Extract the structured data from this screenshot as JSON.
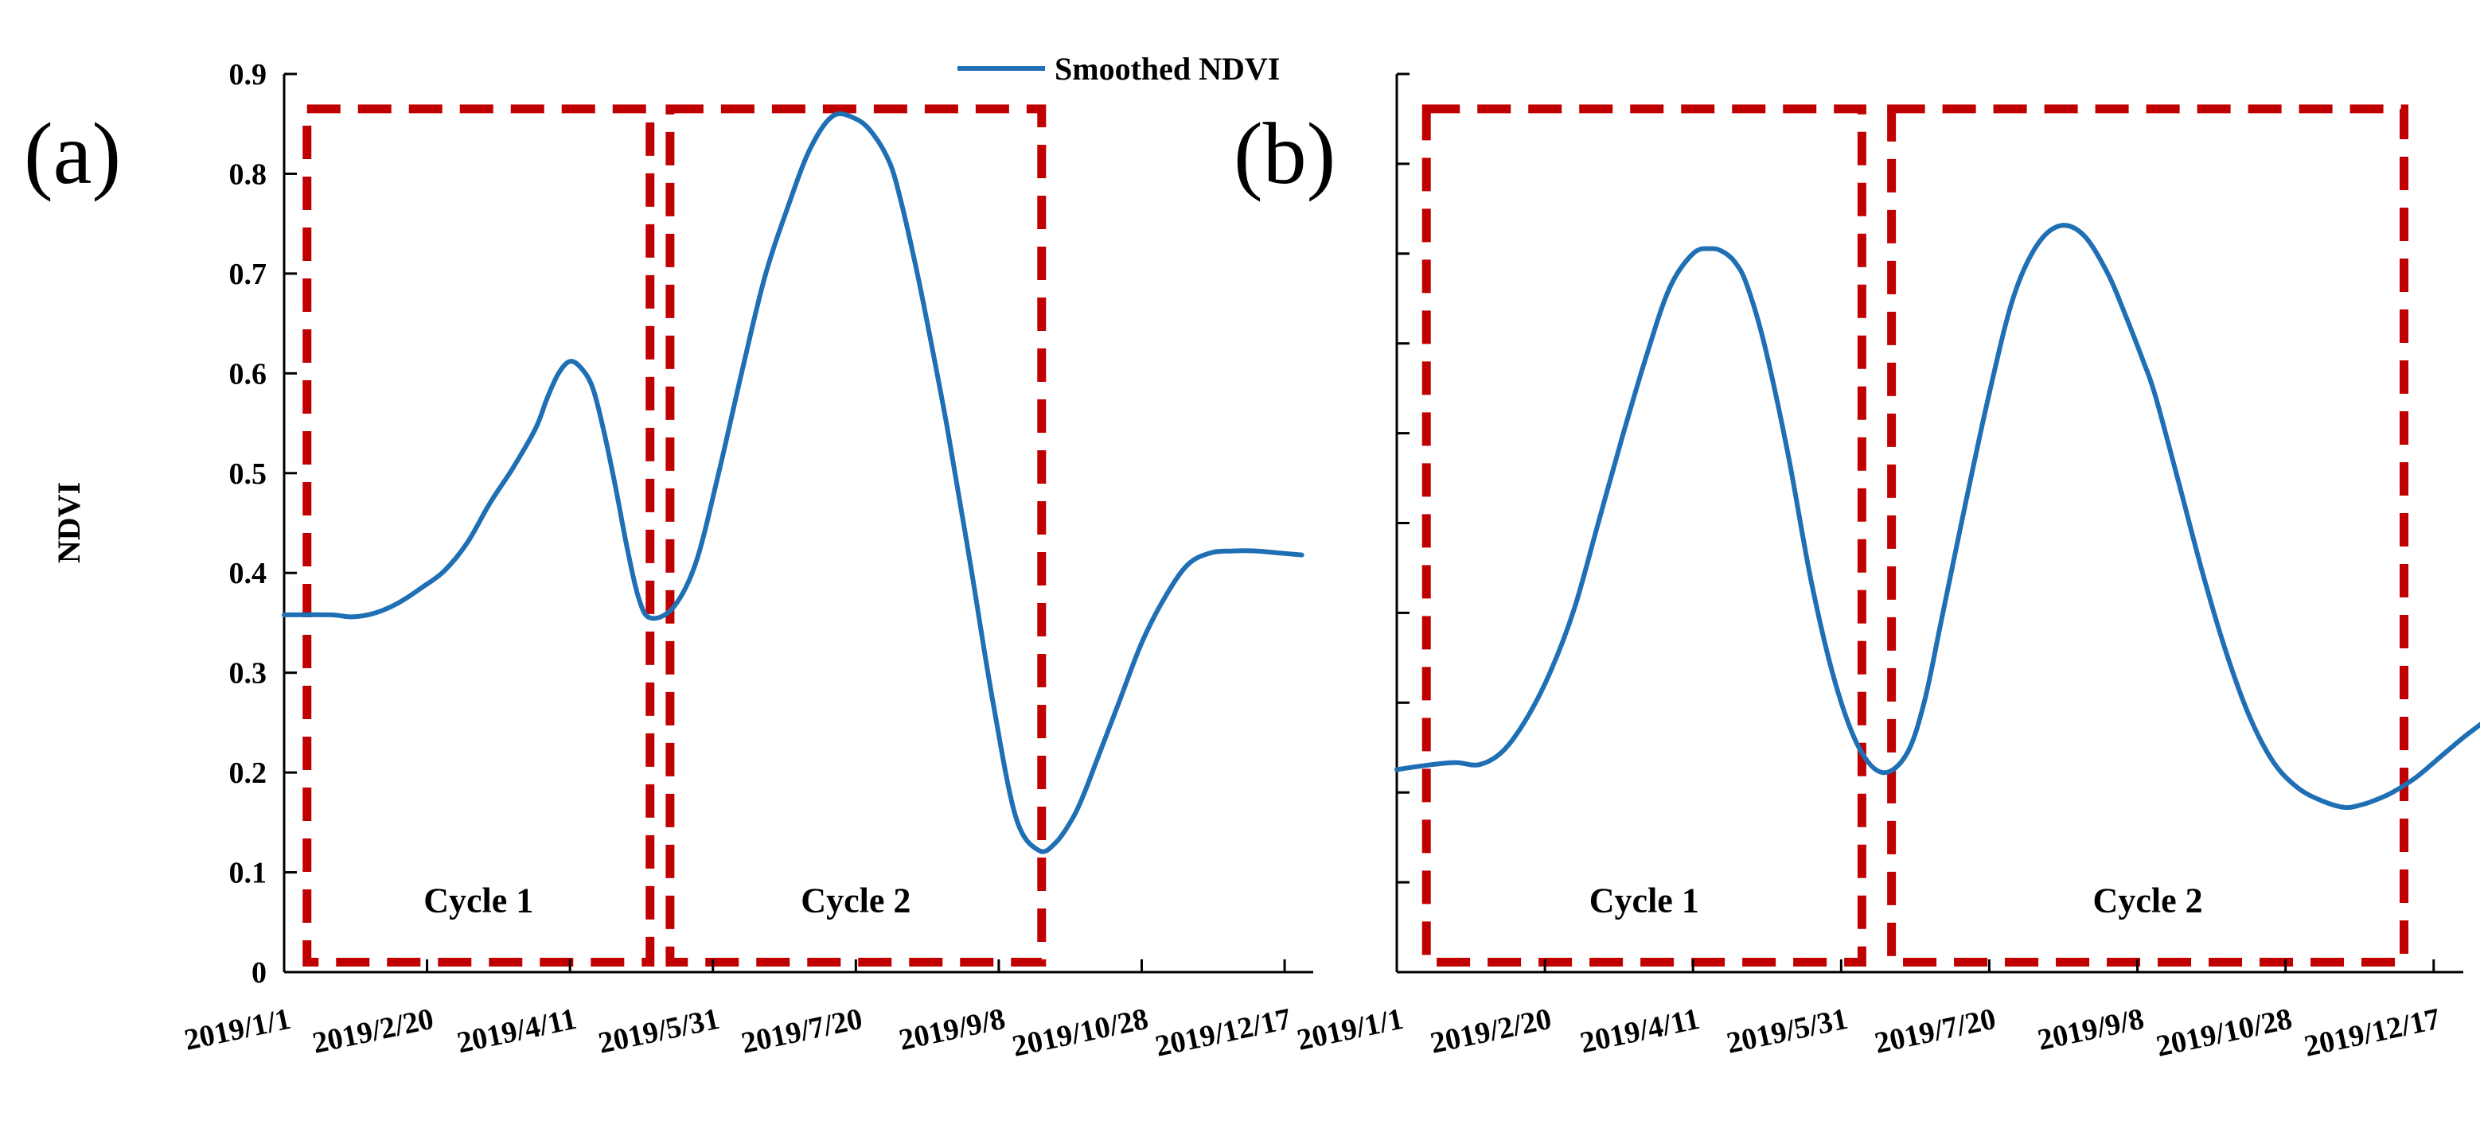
{
  "legend": {
    "label": "Smoothed NDVI"
  },
  "colors": {
    "line": "#1f6fb4",
    "box": "#c00000",
    "axis": "#000000"
  },
  "chart_data": [
    {
      "type": "line",
      "panel_label": "(a)",
      "ylabel": "NDVI",
      "ylim": [
        0,
        0.9
      ],
      "yticks": [
        "0",
        "0.1",
        "0.2",
        "0.3",
        "0.4",
        "0.5",
        "0.6",
        "0.7",
        "0.8",
        "0.9"
      ],
      "xlim": [
        0,
        360
      ],
      "xticks": [
        {
          "label": "2019/1/1",
          "day": 0
        },
        {
          "label": "2019/2/20",
          "day": 50
        },
        {
          "label": "2019/4/11",
          "day": 100
        },
        {
          "label": "2019/5/31",
          "day": 150
        },
        {
          "label": "2019/7/20",
          "day": 200
        },
        {
          "label": "2019/9/8",
          "day": 250
        },
        {
          "label": "2019/10/28",
          "day": 300
        },
        {
          "label": "2019/12/17",
          "day": 350
        }
      ],
      "series": [
        {
          "name": "Smoothed NDVI",
          "x": [
            0,
            16,
            24,
            32,
            40,
            48,
            56,
            64,
            72,
            80,
            88,
            92,
            96,
            100,
            104,
            108,
            112,
            116,
            120,
            124,
            128,
            136,
            144,
            152,
            160,
            168,
            176,
            184,
            192,
            200,
            206,
            212,
            216,
            220,
            224,
            232,
            240,
            248,
            256,
            264,
            270,
            276,
            280,
            284,
            292,
            300,
            308,
            316,
            324,
            332,
            340,
            348,
            356
          ],
          "values": [
            0.358,
            0.358,
            0.356,
            0.36,
            0.37,
            0.385,
            0.402,
            0.43,
            0.47,
            0.505,
            0.545,
            0.575,
            0.6,
            0.612,
            0.605,
            0.585,
            0.54,
            0.485,
            0.425,
            0.375,
            0.355,
            0.365,
            0.41,
            0.5,
            0.6,
            0.695,
            0.765,
            0.825,
            0.858,
            0.855,
            0.84,
            0.81,
            0.77,
            0.72,
            0.665,
            0.545,
            0.41,
            0.27,
            0.155,
            0.122,
            0.13,
            0.155,
            0.18,
            0.21,
            0.27,
            0.33,
            0.375,
            0.408,
            0.42,
            0.422,
            0.422,
            0.42,
            0.418
          ]
        }
      ],
      "annotations": [
        {
          "label": "Cycle 1",
          "x_range": [
            8,
            128
          ],
          "y_range": [
            0.01,
            0.865
          ]
        },
        {
          "label": "Cycle 2",
          "x_range": [
            135,
            265
          ],
          "y_range": [
            0.01,
            0.865
          ]
        }
      ]
    },
    {
      "type": "line",
      "panel_label": "(b)",
      "ylabel": "",
      "ylim": [
        0,
        0.9
      ],
      "yticks": [],
      "xlim": [
        0,
        360
      ],
      "xticks": [
        {
          "label": "2019/1/1",
          "day": 0
        },
        {
          "label": "2019/2/20",
          "day": 50
        },
        {
          "label": "2019/4/11",
          "day": 100
        },
        {
          "label": "2019/5/31",
          "day": 150
        },
        {
          "label": "2019/7/20",
          "day": 200
        },
        {
          "label": "2019/9/8",
          "day": 250
        },
        {
          "label": "2019/10/28",
          "day": 300
        },
        {
          "label": "2019/12/17",
          "day": 350
        }
      ],
      "series": [
        {
          "name": "Smoothed NDVI",
          "x": [
            0,
            12,
            20,
            28,
            36,
            44,
            52,
            60,
            68,
            76,
            84,
            92,
            100,
            106,
            110,
            114,
            118,
            124,
            132,
            140,
            148,
            156,
            164,
            172,
            178,
            184,
            192,
            200,
            208,
            216,
            224,
            232,
            240,
            246,
            252,
            256,
            264,
            272,
            280,
            288,
            296,
            304,
            312,
            320,
            326,
            330,
            336,
            344,
            352,
            360,
            368
          ],
          "values": [
            0.203,
            0.208,
            0.21,
            0.208,
            0.222,
            0.255,
            0.302,
            0.365,
            0.45,
            0.535,
            0.615,
            0.685,
            0.72,
            0.725,
            0.722,
            0.712,
            0.69,
            0.63,
            0.52,
            0.39,
            0.29,
            0.225,
            0.2,
            0.218,
            0.27,
            0.355,
            0.47,
            0.58,
            0.675,
            0.728,
            0.748,
            0.738,
            0.7,
            0.658,
            0.612,
            0.578,
            0.49,
            0.4,
            0.32,
            0.255,
            0.21,
            0.185,
            0.172,
            0.165,
            0.168,
            0.172,
            0.18,
            0.195,
            0.215,
            0.235,
            0.253
          ]
        }
      ],
      "annotations": [
        {
          "label": "Cycle 1",
          "x_range": [
            10,
            157
          ],
          "y_range": [
            0.01,
            0.865
          ]
        },
        {
          "label": "Cycle 2",
          "x_range": [
            167,
            340
          ],
          "y_range": [
            0.01,
            0.865
          ]
        }
      ]
    }
  ]
}
